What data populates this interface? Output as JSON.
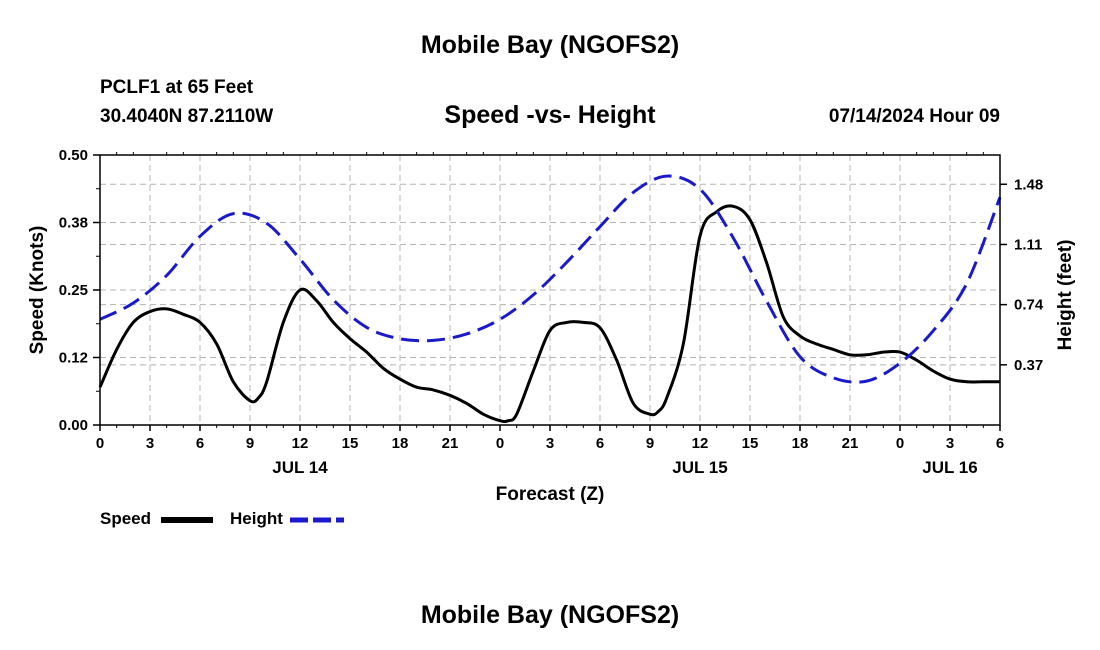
{
  "header": {
    "title": "Mobile Bay (NGOFS2)",
    "station": "PCLF1 at 65 Feet",
    "coords": "30.4040N  87.2110W",
    "subtitle": "Speed -vs- Height",
    "datetime": "07/14/2024 Hour 09",
    "footer_title": "Mobile Bay (NGOFS2)"
  },
  "colors": {
    "speed": "#000000",
    "height": "#1a1acc",
    "grid": "#b4b4b4"
  },
  "chart_data": {
    "type": "line",
    "title": "Speed -vs- Height",
    "xlabel": "Forecast (Z)",
    "ylabel": "Speed (Knots)",
    "y2label": "Height (feet)",
    "xlim": [
      0,
      54
    ],
    "ylim": [
      0,
      0.5
    ],
    "y2lim": [
      0,
      1.66
    ],
    "x_ticks": [
      0,
      3,
      6,
      9,
      12,
      15,
      18,
      21,
      24,
      27,
      30,
      33,
      36,
      39,
      42,
      45,
      48,
      51,
      54
    ],
    "x_tick_labels": [
      "0",
      "3",
      "6",
      "9",
      "12",
      "15",
      "18",
      "21",
      "0",
      "3",
      "6",
      "9",
      "12",
      "15",
      "18",
      "21",
      "0",
      "3",
      "6"
    ],
    "day_labels": [
      {
        "x": 12,
        "label": "JUL 14"
      },
      {
        "x": 36,
        "label": "JUL 15"
      },
      {
        "x": 51,
        "label": "JUL 16"
      }
    ],
    "y_ticks": [
      0,
      0.125,
      0.25,
      0.375,
      0.5
    ],
    "y_tick_labels": [
      "0.00",
      "0.12",
      "0.25",
      "0.38",
      "0.50"
    ],
    "y2_ticks": [
      0.37,
      0.74,
      1.11,
      1.48
    ],
    "y2_tick_labels": [
      "0.37",
      "0.74",
      "1.11",
      "1.48"
    ],
    "legend": [
      "Speed",
      "Height"
    ],
    "series": [
      {
        "name": "Speed",
        "axis": "left",
        "style": "solid",
        "x": [
          0,
          1,
          2,
          3,
          4,
          5,
          6,
          7,
          8,
          9,
          9.5,
          10,
          11,
          12,
          13,
          14,
          15,
          16,
          17,
          18,
          19,
          20,
          21,
          22,
          23,
          24,
          24.5,
          25,
          26,
          27,
          28,
          29,
          30,
          31,
          32,
          33,
          33.5,
          34,
          35,
          36,
          37,
          38,
          39,
          40,
          41,
          42,
          43,
          44,
          45,
          46,
          47,
          48,
          49,
          50,
          51,
          52,
          53,
          54
        ],
        "values": [
          0.07,
          0.14,
          0.19,
          0.21,
          0.215,
          0.205,
          0.19,
          0.15,
          0.08,
          0.045,
          0.05,
          0.08,
          0.19,
          0.25,
          0.23,
          0.19,
          0.16,
          0.135,
          0.105,
          0.085,
          0.07,
          0.065,
          0.055,
          0.04,
          0.02,
          0.008,
          0.008,
          0.02,
          0.1,
          0.175,
          0.19,
          0.19,
          0.18,
          0.12,
          0.04,
          0.02,
          0.025,
          0.05,
          0.15,
          0.35,
          0.395,
          0.405,
          0.38,
          0.3,
          0.2,
          0.165,
          0.15,
          0.14,
          0.13,
          0.13,
          0.135,
          0.135,
          0.12,
          0.1,
          0.085,
          0.08,
          0.08,
          0.08
        ]
      },
      {
        "name": "Height",
        "axis": "right",
        "style": "dashed",
        "x": [
          0,
          2,
          4,
          6,
          8,
          10,
          12,
          14,
          16,
          18,
          20,
          22,
          24,
          26,
          28,
          30,
          32,
          34,
          36,
          38,
          40,
          42,
          44,
          46,
          48,
          50,
          52,
          54
        ],
        "values": [
          0.65,
          0.75,
          0.92,
          1.16,
          1.3,
          1.24,
          1.02,
          0.77,
          0.6,
          0.53,
          0.52,
          0.56,
          0.65,
          0.8,
          1.0,
          1.22,
          1.43,
          1.53,
          1.45,
          1.15,
          0.76,
          0.42,
          0.29,
          0.27,
          0.38,
          0.58,
          0.87,
          1.4
        ]
      }
    ]
  }
}
